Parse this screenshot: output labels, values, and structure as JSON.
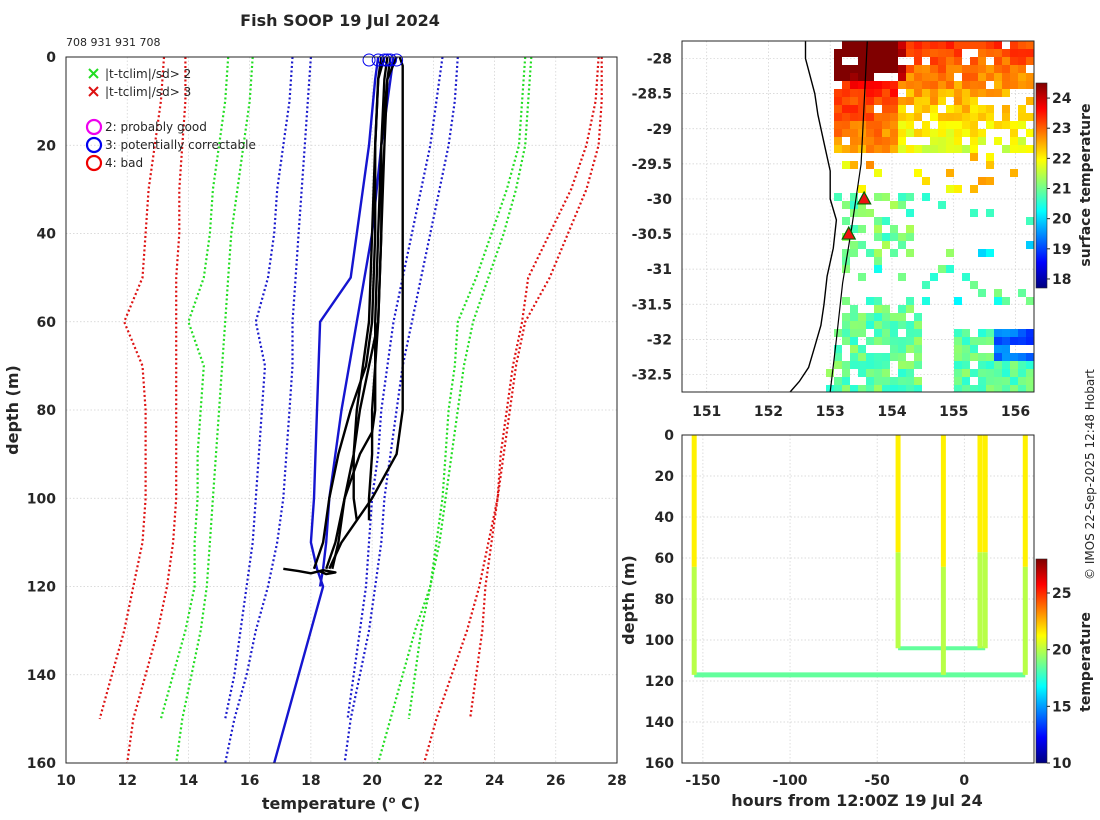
{
  "colors": {
    "climatology_2sd": "#22dd22",
    "climatology_3sd": "#dd1111",
    "climatology_other": "#1a1acc",
    "profile": "#000000",
    "profile_qc": "#1515d0",
    "flag_probably_good": "#ee00ee",
    "flag_potentially_correctable": "#0000ee",
    "flag_bad": "#ee0000",
    "marker_fill": "#ee1111",
    "marker_edge": "#006600"
  },
  "page": {
    "title": "Fish SOOP 19 Jul 2024",
    "ids_label": "708 931 931 708",
    "side_text": "© IMOS 22-Sep-2025 12:48 Hobart"
  },
  "chart_data": [
    {
      "id": "profile",
      "type": "line",
      "title": "Fish SOOP 19 Jul 2024",
      "xlabel": "temperature (",
      "xlabel_sup": "o",
      "xlabel_tail": " C)",
      "ylabel": "depth (m)",
      "xlim": [
        10,
        28
      ],
      "ylim": [
        160,
        0
      ],
      "y_reversed": true,
      "xticks": [
        10,
        12,
        14,
        16,
        18,
        20,
        22,
        24,
        26,
        28
      ],
      "yticks": [
        0,
        20,
        40,
        60,
        80,
        100,
        120,
        140,
        160
      ],
      "grid": true,
      "legend": {
        "position": "top-left",
        "entries": [
          {
            "marker": "x",
            "color_key": "climatology_2sd",
            "label": "|t-tclim|/sd> 2"
          },
          {
            "marker": "x",
            "color_key": "climatology_3sd",
            "label": "|t-tclim|/sd> 3"
          },
          {
            "marker": "o",
            "color_key": "flag_probably_good",
            "label": "2: probably good"
          },
          {
            "marker": "o",
            "color_key": "flag_potentially_correctable",
            "label": "3: potentially correctable"
          },
          {
            "marker": "o",
            "color_key": "flag_bad",
            "label": "4: bad"
          }
        ]
      },
      "climatology": [
        {
          "name": "red-left",
          "color_key": "climatology_3sd",
          "depth": [
            0,
            10,
            20,
            30,
            40,
            50,
            60,
            70,
            80,
            90,
            100,
            110,
            120,
            130,
            140,
            150
          ],
          "temp": [
            13.2,
            13.1,
            12.9,
            12.7,
            12.6,
            12.5,
            11.9,
            12.5,
            12.6,
            12.6,
            12.6,
            12.5,
            12.2,
            11.9,
            11.5,
            11.1
          ]
        },
        {
          "name": "red-left-2",
          "color_key": "climatology_3sd",
          "depth": [
            0,
            10,
            20,
            30,
            40,
            50,
            60,
            70,
            80,
            90,
            100,
            110,
            120,
            130,
            140,
            150,
            160
          ],
          "temp": [
            13.9,
            13.9,
            13.8,
            13.7,
            13.7,
            13.6,
            13.6,
            13.6,
            13.6,
            13.6,
            13.6,
            13.5,
            13.3,
            13.0,
            12.6,
            12.2,
            12.0
          ]
        },
        {
          "name": "green-left",
          "color_key": "climatology_2sd",
          "depth": [
            0,
            10,
            20,
            30,
            40,
            50,
            60,
            70,
            80,
            90,
            100,
            110,
            120,
            130,
            140,
            150
          ],
          "temp": [
            15.3,
            15.2,
            15.0,
            14.8,
            14.7,
            14.5,
            14.0,
            14.5,
            14.4,
            14.3,
            14.3,
            14.2,
            14.2,
            13.9,
            13.5,
            13.1
          ]
        },
        {
          "name": "green-left-2",
          "color_key": "climatology_2sd",
          "depth": [
            0,
            10,
            20,
            30,
            40,
            50,
            60,
            70,
            80,
            90,
            100,
            110,
            120,
            130,
            140,
            150,
            160
          ],
          "temp": [
            16.1,
            16.0,
            15.8,
            15.6,
            15.4,
            15.3,
            15.2,
            15.1,
            15.0,
            14.9,
            14.8,
            14.7,
            14.6,
            14.4,
            14.1,
            13.8,
            13.6
          ]
        },
        {
          "name": "blue-left",
          "color_key": "climatology_other",
          "depth": [
            0,
            10,
            20,
            30,
            40,
            50,
            60,
            70,
            80,
            90,
            100,
            110,
            120,
            130,
            140,
            150
          ],
          "temp": [
            17.4,
            17.3,
            17.1,
            16.9,
            16.8,
            16.6,
            16.2,
            16.5,
            16.4,
            16.3,
            16.2,
            16.1,
            15.9,
            15.7,
            15.5,
            15.2
          ]
        },
        {
          "name": "blue-left-2",
          "color_key": "climatology_other",
          "depth": [
            0,
            10,
            20,
            30,
            40,
            50,
            60,
            70,
            80,
            90,
            100,
            110,
            120,
            130,
            140,
            150,
            160
          ],
          "temp": [
            18.0,
            17.9,
            17.8,
            17.7,
            17.6,
            17.5,
            17.4,
            17.4,
            17.3,
            17.2,
            17.1,
            16.9,
            16.6,
            16.2,
            15.9,
            15.5,
            15.2
          ]
        },
        {
          "name": "blue-right",
          "color_key": "climatology_other",
          "depth": [
            0,
            10,
            20,
            30,
            40,
            50,
            60,
            70,
            80,
            90,
            100,
            110,
            120,
            130,
            140,
            150
          ],
          "temp": [
            22.3,
            22.1,
            21.9,
            21.6,
            21.3,
            21.0,
            20.7,
            20.5,
            20.3,
            20.2,
            20.0,
            19.9,
            19.8,
            19.6,
            19.4,
            19.2
          ]
        },
        {
          "name": "blue-right-2",
          "color_key": "climatology_other",
          "depth": [
            0,
            10,
            20,
            30,
            40,
            50,
            60,
            70,
            80,
            90,
            100,
            110,
            120,
            130,
            140,
            150,
            160
          ],
          "temp": [
            22.8,
            22.7,
            22.5,
            22.2,
            21.9,
            21.6,
            21.3,
            21.0,
            20.8,
            20.6,
            20.4,
            20.3,
            20.1,
            19.9,
            19.6,
            19.3,
            19.1
          ]
        },
        {
          "name": "green-right",
          "color_key": "climatology_2sd",
          "depth": [
            0,
            10,
            20,
            30,
            40,
            50,
            60,
            70,
            80,
            90,
            100,
            110,
            120,
            130,
            140,
            150
          ],
          "temp": [
            25.0,
            24.9,
            24.8,
            24.4,
            23.9,
            23.4,
            22.8,
            22.7,
            22.5,
            22.4,
            22.3,
            22.1,
            21.9,
            21.6,
            21.4,
            21.2
          ]
        },
        {
          "name": "green-right-2",
          "color_key": "climatology_2sd",
          "depth": [
            0,
            10,
            20,
            30,
            40,
            50,
            60,
            70,
            80,
            90,
            100,
            110,
            120,
            130,
            140,
            150,
            160
          ],
          "temp": [
            25.2,
            25.1,
            25.0,
            24.7,
            24.3,
            23.8,
            23.3,
            23.0,
            22.8,
            22.6,
            22.4,
            22.2,
            21.9,
            21.4,
            21.0,
            20.6,
            20.2
          ]
        },
        {
          "name": "red-right",
          "color_key": "climatology_3sd",
          "depth": [
            0,
            10,
            20,
            30,
            40,
            50,
            60,
            70,
            80,
            90,
            100,
            110,
            120,
            130,
            140,
            150
          ],
          "temp": [
            27.4,
            27.3,
            27.0,
            26.5,
            25.8,
            25.1,
            24.9,
            24.6,
            24.4,
            24.2,
            24.1,
            23.9,
            23.7,
            23.6,
            23.4,
            23.2
          ]
        },
        {
          "name": "red-right-2",
          "color_key": "climatology_3sd",
          "depth": [
            0,
            10,
            20,
            30,
            40,
            50,
            60,
            70,
            80,
            90,
            100,
            110,
            120,
            130,
            140,
            150,
            160
          ],
          "temp": [
            27.5,
            27.5,
            27.4,
            27.0,
            26.4,
            25.8,
            25.0,
            24.7,
            24.5,
            24.3,
            24.1,
            23.8,
            23.5,
            23.1,
            22.6,
            22.1,
            21.7
          ]
        }
      ],
      "profiles": [
        {
          "color_key": "profile_qc",
          "depth": [
            0,
            5,
            20,
            40,
            50,
            60,
            80,
            100,
            110,
            116,
            120,
            130,
            140,
            150,
            160
          ],
          "temp": [
            20.2,
            20.1,
            19.9,
            19.5,
            19.3,
            18.3,
            18.2,
            18.1,
            18.0,
            18.2,
            18.4,
            18.0,
            17.6,
            17.2,
            16.8
          ]
        },
        {
          "color_key": "profile_qc",
          "depth": [
            0,
            5,
            20,
            40,
            60,
            80,
            100,
            110,
            116,
            120
          ],
          "temp": [
            20.7,
            20.6,
            20.3,
            20.0,
            19.5,
            19.0,
            18.6,
            18.5,
            18.4,
            18.3
          ]
        },
        {
          "color_key": "profile",
          "depth": [
            0,
            5,
            20,
            40,
            60,
            70,
            80,
            90,
            100,
            105
          ],
          "temp": [
            20.4,
            20.2,
            20.1,
            20.0,
            19.9,
            19.7,
            19.5,
            19.4,
            19.4,
            19.5
          ]
        },
        {
          "color_key": "profile",
          "depth": [
            0,
            5,
            20,
            40,
            60,
            70,
            80,
            90,
            100,
            105
          ],
          "temp": [
            20.6,
            20.5,
            20.3,
            20.2,
            20.1,
            20.1,
            20.0,
            20.0,
            19.9,
            19.9
          ]
        },
        {
          "color_key": "profile",
          "depth": [
            0,
            5,
            20,
            40,
            60,
            70,
            80,
            85,
            90,
            100,
            110,
            116
          ],
          "temp": [
            20.8,
            20.5,
            20.4,
            20.3,
            20.2,
            20.1,
            20.1,
            20.0,
            19.6,
            19.1,
            18.9,
            18.7
          ]
        },
        {
          "color_key": "profile",
          "depth": [
            0,
            2,
            5,
            20,
            40,
            60,
            70,
            80,
            90,
            100,
            110,
            116
          ],
          "temp": [
            20.9,
            21.0,
            21.0,
            21.0,
            21.0,
            21.0,
            21.0,
            21.0,
            20.8,
            20.0,
            19.0,
            18.6
          ]
        },
        {
          "color_key": "profile",
          "depth": [
            0,
            5,
            20,
            40,
            60,
            70,
            80,
            90,
            100,
            110,
            116
          ],
          "temp": [
            20.3,
            20.2,
            20.1,
            20.1,
            20.0,
            19.8,
            19.3,
            18.9,
            18.6,
            18.4,
            18.1
          ]
        },
        {
          "color_key": "profile",
          "depth": [
            0,
            5,
            20,
            40,
            60,
            70,
            80,
            90,
            100,
            110,
            116
          ],
          "temp": [
            20.5,
            20.4,
            20.3,
            20.3,
            20.2,
            19.9,
            19.6,
            19.4,
            19.1,
            18.8,
            18.5
          ]
        },
        {
          "color_key": "profile",
          "depth": [
            116,
            116.5,
            117,
            116.3,
            116.8,
            117.2,
            116.6
          ],
          "temp": [
            17.1,
            17.6,
            18.0,
            18.4,
            18.8,
            18.5,
            18.3
          ]
        }
      ],
      "flag_markers": [
        {
          "flag": "potentially_correctable",
          "color_key": "flag_potentially_correctable",
          "depth": [
            0,
            0,
            0,
            0,
            0,
            0
          ],
          "temp": [
            19.9,
            20.2,
            20.4,
            20.5,
            20.6,
            20.8
          ]
        }
      ]
    },
    {
      "id": "map",
      "type": "heatmap",
      "colorbar_label": "surface temperature",
      "xlim": [
        150.6,
        156.3
      ],
      "ylim": [
        -32.75,
        -27.75
      ],
      "xticks": [
        151,
        152,
        153,
        154,
        155,
        156
      ],
      "yticks": [
        -28,
        -28.5,
        -29,
        -29.5,
        -30,
        -30.5,
        -31,
        -31.5,
        -32,
        -32.5
      ],
      "ytick_labels": [
        "-28",
        "-28.5",
        "-29",
        "-29.5",
        "-30",
        "-30.5",
        "-31",
        "-31.5",
        "-32",
        "-32.5"
      ],
      "clim": [
        17.7,
        24.5
      ],
      "colorbar_ticks": [
        18,
        19,
        20,
        21,
        22,
        23,
        24
      ],
      "coast_lon": [
        152.6,
        152.6,
        152.75,
        152.8,
        152.9,
        153.0,
        153.0,
        153.1,
        153.05,
        152.95,
        152.9,
        152.85,
        152.75,
        152.65,
        152.5,
        152.35
      ],
      "coast_lat": [
        -27.75,
        -28.0,
        -28.5,
        -28.8,
        -29.2,
        -29.6,
        -30.0,
        -30.3,
        -30.7,
        -31.1,
        -31.5,
        -31.8,
        -32.1,
        -32.4,
        -32.6,
        -32.75
      ],
      "track_lon": [
        153.0,
        153.1,
        153.2,
        153.35,
        153.5,
        153.6
      ],
      "track_lat": [
        -32.75,
        -32.0,
        -31.2,
        -30.4,
        -29.5,
        -27.75
      ],
      "stations": [
        {
          "lon": 153.55,
          "lat": -30.0
        },
        {
          "lon": 153.3,
          "lat": -30.5
        }
      ]
    },
    {
      "id": "time-depth",
      "type": "scatter",
      "xlabel": "hours from 12:00Z 19 Jul 24",
      "ylabel": "depth (m)",
      "colorbar_label": "temperature",
      "xlim": [
        -162,
        40
      ],
      "ylim": [
        160,
        0
      ],
      "xticks": [
        -150,
        -100,
        -50,
        0
      ],
      "yticks": [
        0,
        20,
        40,
        60,
        80,
        100,
        120,
        140,
        160
      ],
      "clim": [
        10,
        28
      ],
      "colorbar_ticks": [
        10,
        15,
        20,
        25
      ],
      "drops": [
        {
          "hour": -155,
          "max_depth": 117
        },
        {
          "hour": -38,
          "max_depth": 104
        },
        {
          "hour": -12,
          "max_depth": 117
        },
        {
          "hour": 9,
          "max_depth": 104
        },
        {
          "hour": 12,
          "max_depth": 104
        },
        {
          "hour": 35,
          "max_depth": 117
        }
      ],
      "bottom_track": {
        "hour_from": -155,
        "hour_to": 35,
        "depth": 117
      }
    }
  ]
}
